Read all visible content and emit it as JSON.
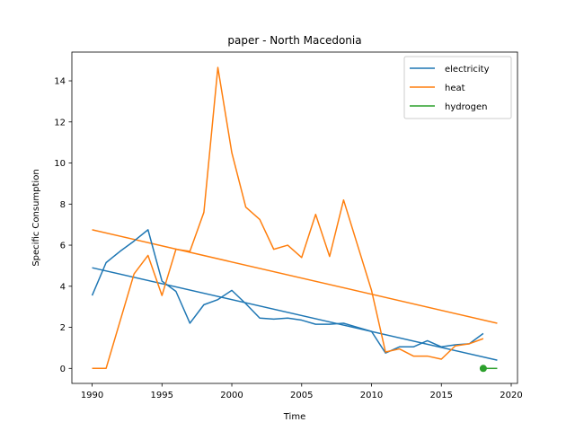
{
  "chart_data": {
    "type": "line",
    "title": "paper - North Macedonia",
    "xlabel": "Time",
    "ylabel": "Specific Consumption",
    "xlim": [
      1988.55,
      2020.45
    ],
    "ylim": [
      -0.73,
      15.4
    ],
    "xticks": [
      1990,
      1995,
      2000,
      2005,
      2010,
      2015,
      2020
    ],
    "yticks": [
      0,
      2,
      4,
      6,
      8,
      10,
      12,
      14
    ],
    "grid": false,
    "legend_position": "top-right",
    "series": [
      {
        "name": "electricity",
        "color": "#1f77b4",
        "x": [
          1990,
          1991,
          1992,
          1993,
          1994,
          1995,
          1996,
          1997,
          1998,
          1999,
          2000,
          2001,
          2002,
          2003,
          2004,
          2005,
          2006,
          2007,
          2008,
          2009,
          2010,
          2011,
          2012,
          2013,
          2014,
          2015,
          2016,
          2017,
          2018
        ],
        "y": [
          3.55,
          5.15,
          5.7,
          6.2,
          6.75,
          4.25,
          3.75,
          2.2,
          3.1,
          3.35,
          3.8,
          3.15,
          2.45,
          2.4,
          2.45,
          2.35,
          2.15,
          2.15,
          2.2,
          2.0,
          1.8,
          0.75,
          1.05,
          1.05,
          1.35,
          1.05,
          1.15,
          1.2,
          1.7
        ]
      },
      {
        "name": "heat",
        "color": "#ff7f0e",
        "x": [
          1990,
          1991,
          1992,
          1993,
          1994,
          1995,
          1996,
          1997,
          1998,
          1999,
          2000,
          2001,
          2002,
          2003,
          2004,
          2005,
          2006,
          2007,
          2008,
          2009,
          2010,
          2011,
          2012,
          2013,
          2014,
          2015,
          2016,
          2017,
          2018
        ],
        "y": [
          0.0,
          0.0,
          2.3,
          4.6,
          5.5,
          3.55,
          5.8,
          5.7,
          7.6,
          14.65,
          10.5,
          7.85,
          7.25,
          5.8,
          6.0,
          5.4,
          7.5,
          5.45,
          8.2,
          6.0,
          3.8,
          0.8,
          0.95,
          0.6,
          0.6,
          0.45,
          1.1,
          1.2,
          1.45
        ]
      },
      {
        "name": "hydrogen",
        "color": "#2ca02c",
        "x": [
          2018
        ],
        "y": [
          0.0
        ]
      }
    ],
    "trendlines": [
      {
        "series": "electricity",
        "color": "#1f77b4",
        "x": [
          1990,
          2019
        ],
        "y": [
          4.9,
          0.4
        ]
      },
      {
        "series": "heat",
        "color": "#ff7f0e",
        "x": [
          1990,
          2019
        ],
        "y": [
          6.75,
          2.2
        ]
      },
      {
        "series": "hydrogen",
        "color": "#2ca02c",
        "x": [
          2018,
          2019
        ],
        "y": [
          0.0,
          0.0
        ]
      }
    ]
  }
}
